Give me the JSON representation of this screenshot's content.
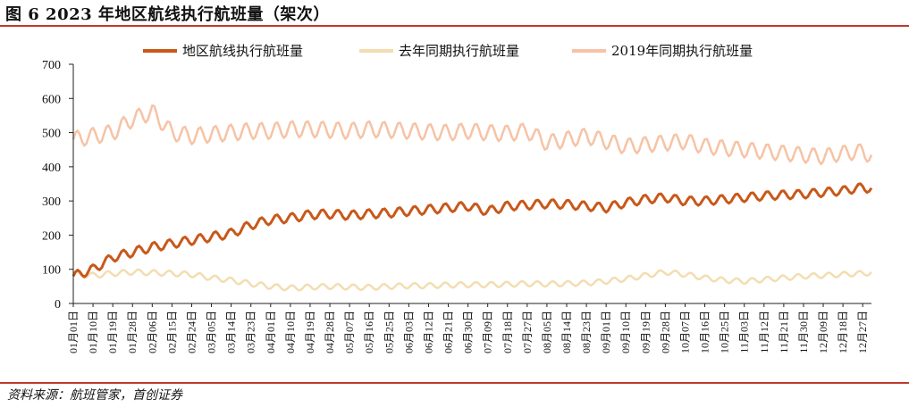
{
  "header": {
    "title": "图 6 2023 年地区航线执行航班量（架次）"
  },
  "footer": {
    "source": "资料来源：航班管家，首创证券"
  },
  "colors": {
    "series_2023": "#c8581a",
    "series_last_year": "#f3ddb1",
    "series_2019": "#f6c3a5",
    "accent_rule": "#c0392b"
  },
  "chart_data": {
    "type": "line",
    "title": "",
    "xlabel": "",
    "ylabel": "",
    "ylim": [
      0,
      700
    ],
    "yticks": [
      0,
      100,
      200,
      300,
      400,
      500,
      600,
      700
    ],
    "grid": false,
    "legend_position": "top",
    "x_tick_labels": [
      "01月01日",
      "01月10日",
      "01月19日",
      "01月28日",
      "02月06日",
      "02月15日",
      "02月24日",
      "03月05日",
      "03月14日",
      "03月23日",
      "04月01日",
      "04月10日",
      "04月19日",
      "04月28日",
      "05月07日",
      "05月16日",
      "05月25日",
      "06月03日",
      "06月12日",
      "06月21日",
      "06月30日",
      "07月09日",
      "07月18日",
      "07月27日",
      "08月05日",
      "08月14日",
      "08月23日",
      "09月01日",
      "09月10日",
      "09月19日",
      "09月28日",
      "10月07日",
      "10月16日",
      "10月25日",
      "11月03日",
      "11月12日",
      "11月21日",
      "11月30日",
      "12月09日",
      "12月18日",
      "12月27日"
    ],
    "series": [
      {
        "name": "地区航线执行航班量",
        "x": [
          0,
          9,
          18,
          27,
          36,
          45,
          54,
          63,
          72,
          81,
          90,
          99,
          108,
          117,
          126,
          135,
          144,
          153,
          162,
          171,
          180,
          189,
          198,
          207,
          216,
          225,
          234,
          243,
          252,
          261,
          270,
          279,
          288,
          297,
          306,
          315,
          324,
          333,
          342,
          351,
          360,
          364
        ],
        "values": [
          80,
          100,
          135,
          150,
          165,
          175,
          185,
          195,
          205,
          230,
          245,
          250,
          260,
          262,
          258,
          262,
          265,
          270,
          275,
          280,
          285,
          270,
          285,
          288,
          292,
          290,
          285,
          280,
          295,
          305,
          310,
          300,
          300,
          305,
          310,
          315,
          318,
          320,
          325,
          330,
          340,
          335
        ]
      },
      {
        "name": "去年同期执行航班量",
        "x": [
          0,
          9,
          18,
          27,
          36,
          45,
          54,
          63,
          72,
          81,
          90,
          99,
          108,
          117,
          126,
          135,
          144,
          153,
          162,
          171,
          180,
          189,
          198,
          207,
          216,
          225,
          234,
          243,
          252,
          261,
          270,
          279,
          288,
          297,
          306,
          315,
          324,
          333,
          342,
          351,
          360,
          364
        ],
        "values": [
          85,
          82,
          88,
          92,
          90,
          88,
          85,
          75,
          68,
          58,
          50,
          45,
          48,
          50,
          48,
          47,
          50,
          52,
          52,
          54,
          55,
          55,
          56,
          58,
          57,
          58,
          60,
          65,
          72,
          82,
          92,
          85,
          75,
          68,
          65,
          70,
          75,
          80,
          82,
          85,
          88,
          90
        ]
      },
      {
        "name": "2019年同期执行航班量",
        "x": [
          0,
          9,
          18,
          27,
          36,
          45,
          54,
          63,
          72,
          81,
          90,
          99,
          108,
          117,
          126,
          135,
          144,
          153,
          162,
          171,
          180,
          189,
          198,
          207,
          216,
          225,
          234,
          243,
          252,
          261,
          270,
          279,
          288,
          297,
          306,
          315,
          324,
          333,
          342,
          351,
          360,
          364
        ],
        "values": [
          480,
          490,
          500,
          540,
          560,
          500,
          490,
          495,
          500,
          505,
          505,
          510,
          510,
          508,
          505,
          510,
          508,
          505,
          502,
          500,
          505,
          500,
          498,
          505,
          470,
          480,
          490,
          475,
          460,
          465,
          470,
          475,
          460,
          455,
          450,
          445,
          440,
          435,
          430,
          440,
          445,
          430
        ]
      }
    ]
  }
}
